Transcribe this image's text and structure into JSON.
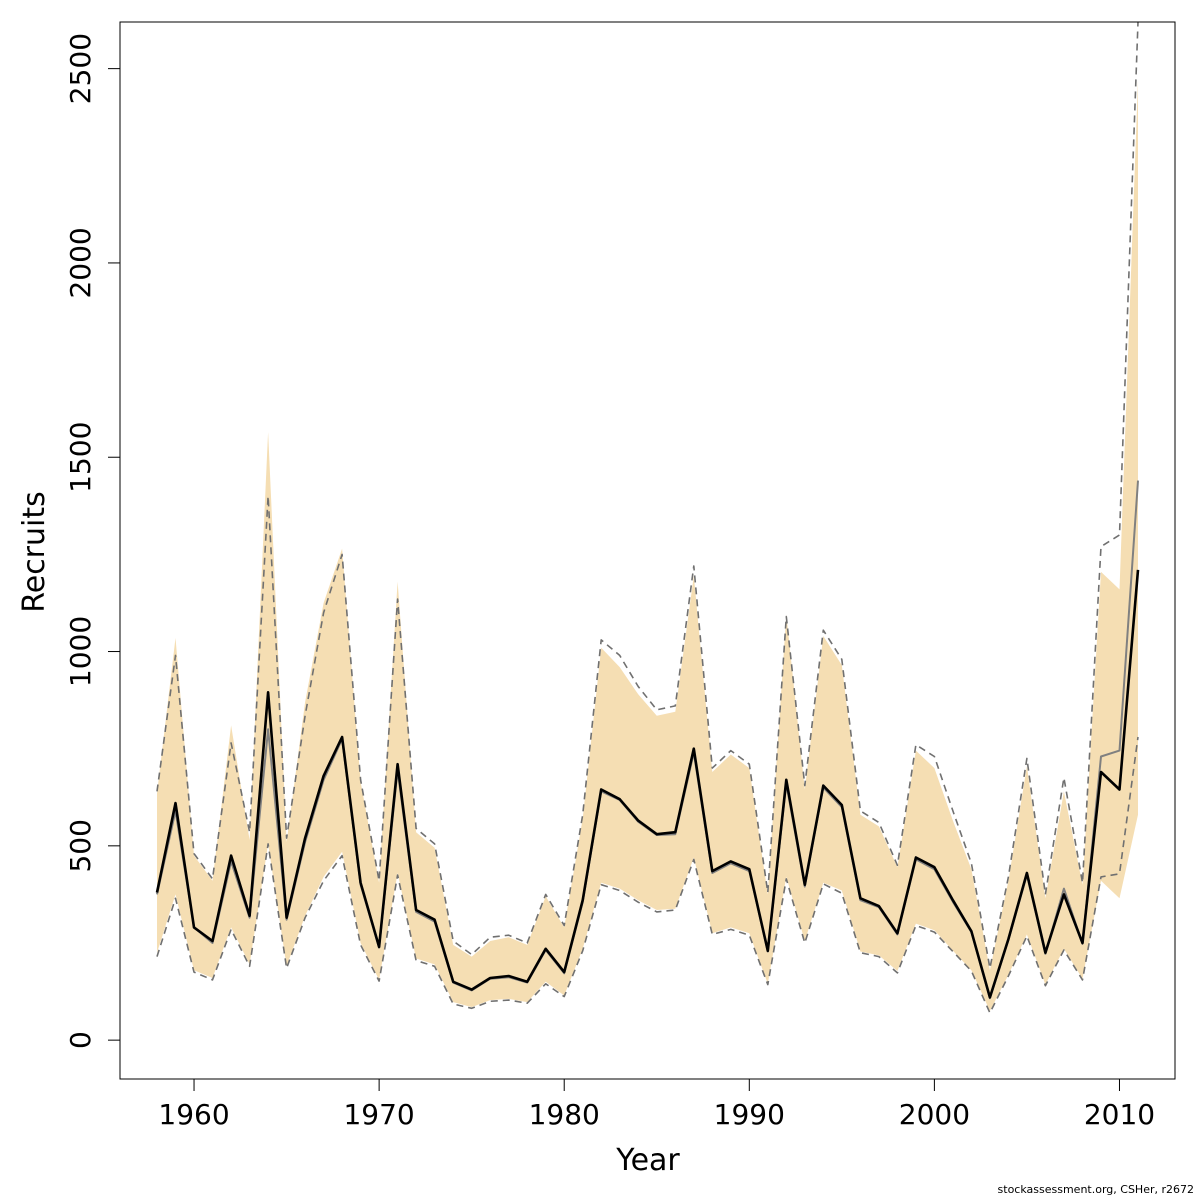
{
  "chart_data": {
    "type": "area",
    "title": "",
    "xlabel": "Year",
    "ylabel": "Recruits",
    "xlim": [
      1956,
      2013
    ],
    "ylim": [
      -100,
      2620
    ],
    "xticks": [
      1960,
      1970,
      1980,
      1990,
      2000,
      2010
    ],
    "yticks": [
      0,
      500,
      1000,
      1500,
      2000,
      2500
    ],
    "grid": false,
    "legend": "none",
    "colors": {
      "band_fill": "#f5deb3",
      "main_line": "#000000",
      "alt_line": "#808080",
      "ci_dashed": "#707070"
    },
    "x": [
      1958,
      1959,
      1960,
      1961,
      1962,
      1963,
      1964,
      1965,
      1966,
      1967,
      1968,
      1969,
      1970,
      1971,
      1972,
      1973,
      1974,
      1975,
      1976,
      1977,
      1978,
      1979,
      1980,
      1981,
      1982,
      1983,
      1984,
      1985,
      1986,
      1987,
      1988,
      1989,
      1990,
      1991,
      1992,
      1993,
      1994,
      1995,
      1996,
      1997,
      1998,
      1999,
      2000,
      2001,
      2002,
      2003,
      2004,
      2005,
      2006,
      2007,
      2008,
      2009,
      2010,
      2011
    ],
    "series": [
      {
        "values": [
          380,
          610,
          290,
          255,
          475,
          320,
          895,
          315,
          520,
          680,
          780,
          405,
          240,
          710,
          335,
          310,
          150,
          130,
          160,
          165,
          150,
          235,
          175,
          360,
          645,
          620,
          565,
          530,
          535,
          750,
          435,
          460,
          440,
          230,
          670,
          400,
          655,
          605,
          365,
          345,
          275,
          470,
          445,
          360,
          280,
          110,
          260,
          430,
          225,
          375,
          250,
          690,
          645,
          1210
        ]
      },
      {
        "values": [
          375,
          590,
          290,
          250,
          460,
          315,
          800,
          310,
          510,
          670,
          775,
          400,
          238,
          695,
          330,
          305,
          148,
          128,
          158,
          162,
          148,
          232,
          172,
          355,
          640,
          618,
          562,
          528,
          530,
          740,
          430,
          455,
          435,
          228,
          660,
          395,
          650,
          600,
          360,
          342,
          272,
          465,
          440,
          356,
          278,
          108,
          258,
          425,
          222,
          390,
          248,
          730,
          745,
          1440
        ]
      },
      {
        "values": [
          640,
          990,
          480,
          415,
          765,
          535,
          1400,
          520,
          835,
          1100,
          1250,
          670,
          410,
          1135,
          545,
          505,
          255,
          220,
          265,
          270,
          250,
          375,
          295,
          580,
          1030,
          990,
          910,
          850,
          860,
          1220,
          700,
          745,
          710,
          380,
          1090,
          655,
          1055,
          980,
          590,
          560,
          450,
          760,
          730,
          590,
          455,
          185,
          420,
          725,
          375,
          675,
          405,
          1270,
          1300,
          2640
        ]
      },
      {
        "values": [
          215,
          365,
          175,
          155,
          285,
          190,
          505,
          185,
          315,
          410,
          475,
          245,
          152,
          425,
          205,
          190,
          93,
          82,
          100,
          103,
          95,
          145,
          112,
          230,
          400,
          385,
          355,
          330,
          335,
          465,
          272,
          285,
          270,
          143,
          415,
          250,
          402,
          378,
          225,
          215,
          173,
          295,
          278,
          228,
          178,
          70,
          165,
          268,
          140,
          232,
          155,
          420,
          428,
          780
        ]
      },
      {
        "values": [
          635,
          1035,
          475,
          410,
          810,
          515,
          1565,
          510,
          870,
          1125,
          1265,
          665,
          405,
          1180,
          535,
          495,
          245,
          215,
          255,
          265,
          245,
          370,
          290,
          570,
          1010,
          960,
          890,
          835,
          845,
          1195,
          690,
          735,
          700,
          375,
          1095,
          645,
          1040,
          965,
          580,
          550,
          445,
          745,
          700,
          565,
          440,
          180,
          410,
          705,
          365,
          640,
          400,
          1205,
          1160,
          2470
        ]
      },
      {
        "values": [
          225,
          375,
          180,
          160,
          290,
          195,
          505,
          190,
          320,
          420,
          485,
          250,
          155,
          430,
          210,
          195,
          98,
          85,
          103,
          106,
          98,
          150,
          115,
          235,
          405,
          390,
          360,
          335,
          338,
          470,
          275,
          290,
          275,
          145,
          420,
          255,
          405,
          385,
          228,
          218,
          178,
          300,
          283,
          230,
          180,
          75,
          168,
          272,
          143,
          235,
          158,
          410,
          365,
          580
        ]
      }
    ]
  },
  "footer": "stockassessment.org, CSHer, r2672"
}
